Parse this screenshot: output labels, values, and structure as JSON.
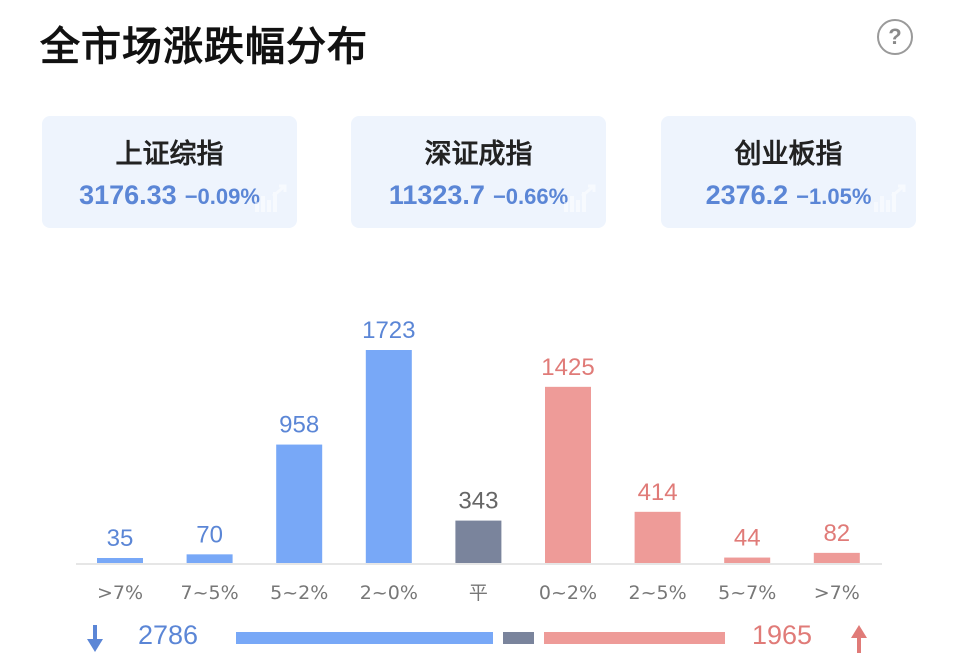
{
  "header": {
    "title": "全市场涨跌幅分布",
    "help_icon": "help-circle-icon",
    "help_glyph": "?"
  },
  "indices": [
    {
      "name": "上证综指",
      "value": "3176.33",
      "change": "−0.09%"
    },
    {
      "name": "深证成指",
      "value": "11323.7",
      "change": "−0.66%"
    },
    {
      "name": "创业板指",
      "value": "2376.2",
      "change": "−1.05%"
    }
  ],
  "colors": {
    "down": "#78a8f7",
    "flat": "#7a849c",
    "up": "#ee9b98",
    "down_text": "#5b86d6",
    "up_text": "#e07b78",
    "flat_text": "#666666"
  },
  "chart_data": {
    "type": "bar",
    "categories": [
      ">7%",
      "7~5%",
      "5~2%",
      "2~0%",
      "平",
      "0~2%",
      "2~5%",
      "5~7%",
      ">7%"
    ],
    "values": [
      35,
      70,
      958,
      1723,
      343,
      1425,
      414,
      44,
      82
    ],
    "groups": [
      "down",
      "down",
      "down",
      "down",
      "flat",
      "up",
      "up",
      "up",
      "up"
    ],
    "ylim": [
      0,
      1723
    ]
  },
  "summary": {
    "down_count": "2786",
    "up_count": "1965",
    "down_icon": "arrow-down-icon",
    "up_icon": "arrow-up-icon"
  }
}
